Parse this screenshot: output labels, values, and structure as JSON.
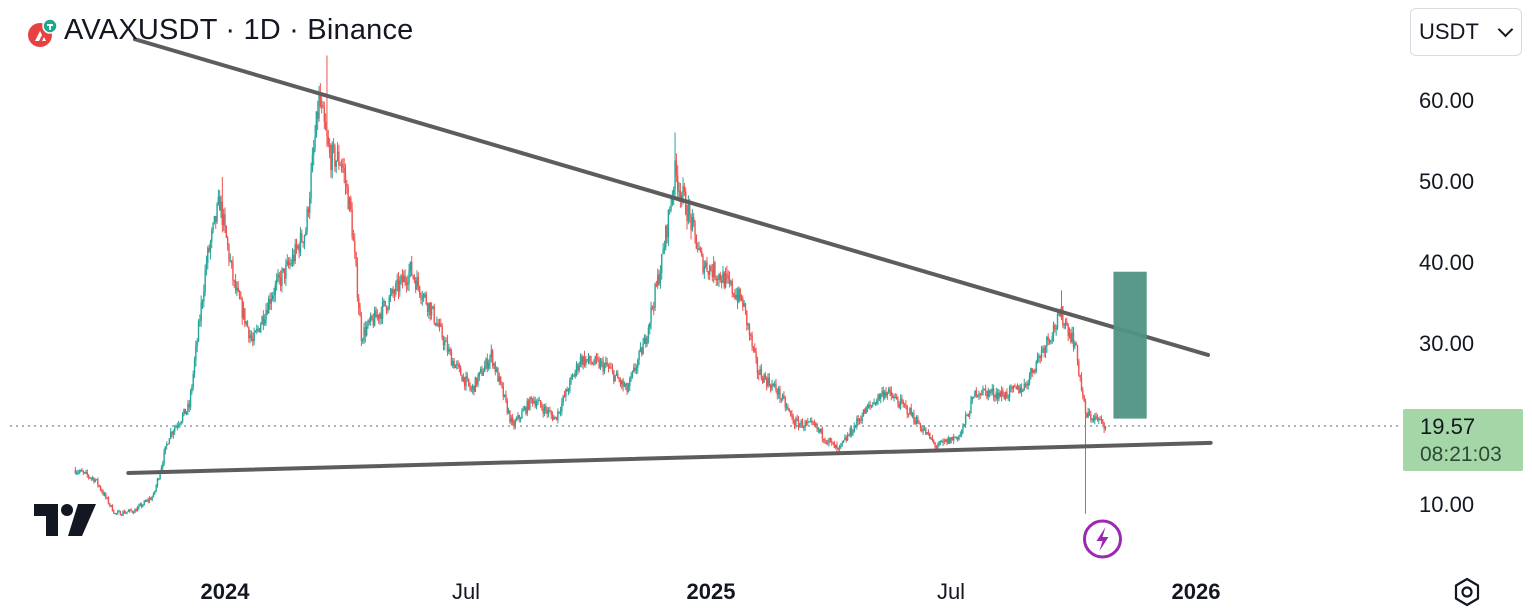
{
  "header": {
    "title": "AVAXUSDT · 1D · Binance",
    "logo_icon": "avalanche-logo-icon"
  },
  "currency_select": {
    "value": "USDT"
  },
  "last_price": {
    "price": "19.57",
    "countdown": "08:21:03"
  },
  "colors": {
    "up": "#26a69a",
    "down": "#ef5350",
    "trendline": "#5d5d5d",
    "box": "#4f9486",
    "last_price_bg": "#a5d6a7",
    "marker": "#9c27b0"
  },
  "chart_data": {
    "type": "candlestick",
    "symbol": "AVAXUSDT",
    "interval": "1D",
    "exchange": "Binance",
    "y_axis": {
      "ticks": [
        10,
        30,
        40,
        50,
        60
      ],
      "tick_labels": [
        "10.00",
        "30.00",
        "40.00",
        "50.00",
        "60.00"
      ],
      "range": [
        4,
        70
      ]
    },
    "x_axis": {
      "tick_labels": [
        "2024",
        "Jul",
        "2025",
        "Jul",
        "2026"
      ],
      "tick_dates": [
        "2024-01-01",
        "2024-07-01",
        "2025-01-01",
        "2025-07-01",
        "2026-01-01"
      ],
      "range": [
        "2023-09-10",
        "2026-03-01"
      ]
    },
    "price_path": [
      {
        "date": "2023-09-10",
        "close": 14.2
      },
      {
        "date": "2023-09-25",
        "close": 13.0
      },
      {
        "date": "2023-10-10",
        "close": 8.8
      },
      {
        "date": "2023-10-25",
        "close": 9.2
      },
      {
        "date": "2023-11-08",
        "close": 11.0
      },
      {
        "date": "2023-11-20",
        "close": 18.5
      },
      {
        "date": "2023-12-05",
        "close": 22.0
      },
      {
        "date": "2023-12-18",
        "close": 40.0
      },
      {
        "date": "2023-12-28",
        "close": 47.5
      },
      {
        "date": "2024-01-08",
        "close": 37.0
      },
      {
        "date": "2024-01-22",
        "close": 30.0
      },
      {
        "date": "2024-02-05",
        "close": 36.0
      },
      {
        "date": "2024-02-20",
        "close": 40.0
      },
      {
        "date": "2024-03-02",
        "close": 44.0
      },
      {
        "date": "2024-03-12",
        "close": 60.0
      },
      {
        "date": "2024-03-20",
        "close": 53.0
      },
      {
        "date": "2024-03-29",
        "close": 52.5
      },
      {
        "date": "2024-04-05",
        "close": 46.0
      },
      {
        "date": "2024-04-13",
        "close": 31.0
      },
      {
        "date": "2024-04-28",
        "close": 34.0
      },
      {
        "date": "2024-05-20",
        "close": 39.0
      },
      {
        "date": "2024-06-05",
        "close": 34.0
      },
      {
        "date": "2024-06-20",
        "close": 28.0
      },
      {
        "date": "2024-07-05",
        "close": 24.0
      },
      {
        "date": "2024-07-20",
        "close": 28.5
      },
      {
        "date": "2024-08-05",
        "close": 19.5
      },
      {
        "date": "2024-08-20",
        "close": 23.0
      },
      {
        "date": "2024-09-06",
        "close": 20.5
      },
      {
        "date": "2024-09-25",
        "close": 28.0
      },
      {
        "date": "2024-10-15",
        "close": 27.0
      },
      {
        "date": "2024-10-30",
        "close": 24.0
      },
      {
        "date": "2024-11-12",
        "close": 30.0
      },
      {
        "date": "2024-11-25",
        "close": 40.0
      },
      {
        "date": "2024-12-05",
        "close": 51.0
      },
      {
        "date": "2024-12-15",
        "close": 46.0
      },
      {
        "date": "2024-12-25",
        "close": 40.0
      },
      {
        "date": "2025-01-10",
        "close": 38.0
      },
      {
        "date": "2025-01-25",
        "close": 35.0
      },
      {
        "date": "2025-02-05",
        "close": 26.5
      },
      {
        "date": "2025-02-20",
        "close": 24.0
      },
      {
        "date": "2025-03-05",
        "close": 20.0
      },
      {
        "date": "2025-03-20",
        "close": 19.5
      },
      {
        "date": "2025-04-07",
        "close": 16.5
      },
      {
        "date": "2025-04-25",
        "close": 21.0
      },
      {
        "date": "2025-05-12",
        "close": 24.0
      },
      {
        "date": "2025-05-30",
        "close": 21.5
      },
      {
        "date": "2025-06-20",
        "close": 17.0
      },
      {
        "date": "2025-07-08",
        "close": 18.5
      },
      {
        "date": "2025-07-20",
        "close": 24.0
      },
      {
        "date": "2025-08-10",
        "close": 23.5
      },
      {
        "date": "2025-08-25",
        "close": 24.5
      },
      {
        "date": "2025-09-10",
        "close": 30.0
      },
      {
        "date": "2025-09-22",
        "close": 33.5
      },
      {
        "date": "2025-10-02",
        "close": 30.0
      },
      {
        "date": "2025-10-10",
        "close": 21.0
      },
      {
        "date": "2025-10-18",
        "close": 20.5
      },
      {
        "date": "2025-10-25",
        "close": 19.57
      }
    ],
    "notable_wicks": [
      {
        "date": "2023-12-30",
        "high": 50.5
      },
      {
        "date": "2024-03-18",
        "high": 65.5
      },
      {
        "date": "2024-12-05",
        "high": 56.0
      },
      {
        "date": "2025-09-22",
        "high": 36.5
      },
      {
        "date": "2025-10-10",
        "low": 8.8
      }
    ],
    "last_price": 19.57,
    "drawings": {
      "trendlines": [
        {
          "from": {
            "date": "2023-10-25",
            "price": 67.5
          },
          "to": {
            "date": "2026-01-10",
            "price": 28.5
          }
        },
        {
          "from": {
            "date": "2023-10-20",
            "price": 13.8
          },
          "to": {
            "date": "2026-01-12",
            "price": 17.5
          }
        }
      ],
      "rectangle": {
        "from": {
          "date": "2025-10-31",
          "price": 38.8
        },
        "to": {
          "date": "2025-11-25",
          "price": 20.5
        }
      },
      "event_marker": {
        "date": "2025-10-10",
        "icon": "lightning-icon"
      }
    }
  }
}
